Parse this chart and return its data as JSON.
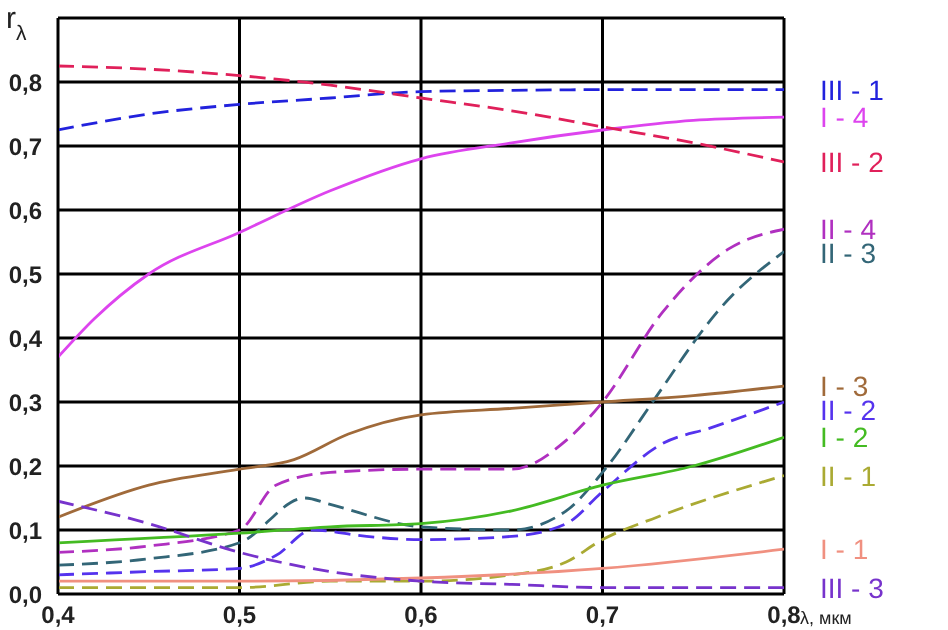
{
  "chart_data": {
    "type": "line",
    "ylabel": "r$_{λ}$",
    "xlabel": "λ, мкм",
    "xlim": [
      0.4,
      0.8
    ],
    "ylim": [
      0,
      0.9
    ],
    "xticks": [
      {
        "value": 0.4,
        "label": "0,4"
      },
      {
        "value": 0.5,
        "label": "0,5"
      },
      {
        "value": 0.6,
        "label": "0,6"
      },
      {
        "value": 0.7,
        "label": "0,7"
      },
      {
        "value": 0.8,
        "label": "0,8"
      }
    ],
    "yticks": [
      {
        "value": 0,
        "label": "0,0"
      },
      {
        "value": 0.1,
        "label": "0,1"
      },
      {
        "value": 0.2,
        "label": "0,2"
      },
      {
        "value": 0.3,
        "label": "0,3"
      },
      {
        "value": 0.4,
        "label": "0,4"
      },
      {
        "value": 0.5,
        "label": "0,5"
      },
      {
        "value": 0.6,
        "label": "0,6"
      },
      {
        "value": 0.7,
        "label": "0,7"
      },
      {
        "value": 0.8,
        "label": "0,8"
      }
    ],
    "grid": true,
    "legend": false,
    "marker": "none",
    "series": [
      {
        "name": "III - 1",
        "color": "#2222dd",
        "line_style": "dashed",
        "x": [
          0.4,
          0.45,
          0.5,
          0.55,
          0.6,
          0.65,
          0.7,
          0.8
        ],
        "values": [
          0.725,
          0.75,
          0.765,
          0.775,
          0.785,
          0.787,
          0.788,
          0.788
        ]
      },
      {
        "name": "I - 4",
        "color": "#dd44ee",
        "line_style": "solid",
        "x": [
          0.4,
          0.42,
          0.45,
          0.5,
          0.55,
          0.6,
          0.65,
          0.7,
          0.75,
          0.8
        ],
        "values": [
          0.37,
          0.43,
          0.5,
          0.565,
          0.63,
          0.68,
          0.705,
          0.725,
          0.74,
          0.745
        ]
      },
      {
        "name": "III - 2",
        "color": "#e0205a",
        "line_style": "dashed",
        "x": [
          0.4,
          0.45,
          0.5,
          0.55,
          0.6,
          0.65,
          0.7,
          0.75,
          0.8
        ],
        "values": [
          0.825,
          0.82,
          0.81,
          0.795,
          0.775,
          0.755,
          0.73,
          0.705,
          0.675
        ]
      },
      {
        "name": "II - 4",
        "color": "#b030c0",
        "line_style": "dashed",
        "x": [
          0.4,
          0.45,
          0.5,
          0.52,
          0.55,
          0.6,
          0.65,
          0.68,
          0.7,
          0.733,
          0.77,
          0.8
        ],
        "values": [
          0.065,
          0.075,
          0.1,
          0.17,
          0.19,
          0.195,
          0.195,
          0.24,
          0.3,
          0.44,
          0.54,
          0.57
        ]
      },
      {
        "name": "II - 3",
        "color": "#336677",
        "line_style": "dashed",
        "x": [
          0.4,
          0.45,
          0.5,
          0.536,
          0.55,
          0.6,
          0.65,
          0.68,
          0.7,
          0.73,
          0.752,
          0.763,
          0.8
        ],
        "values": [
          0.045,
          0.055,
          0.08,
          0.15,
          0.14,
          0.105,
          0.1,
          0.13,
          0.19,
          0.31,
          0.4,
          0.44,
          0.535
        ]
      },
      {
        "name": "I - 3",
        "color": "#a06a3a",
        "line_style": "solid",
        "x": [
          0.4,
          0.45,
          0.5,
          0.53,
          0.56,
          0.6,
          0.65,
          0.7,
          0.75,
          0.8
        ],
        "values": [
          0.12,
          0.17,
          0.195,
          0.21,
          0.25,
          0.28,
          0.29,
          0.3,
          0.31,
          0.325
        ]
      },
      {
        "name": "II - 2",
        "color": "#5533ee",
        "line_style": "dashed",
        "x": [
          0.4,
          0.45,
          0.5,
          0.52,
          0.54,
          0.57,
          0.6,
          0.65,
          0.68,
          0.7,
          0.733,
          0.76,
          0.8
        ],
        "values": [
          0.03,
          0.035,
          0.04,
          0.06,
          0.1,
          0.09,
          0.085,
          0.09,
          0.11,
          0.16,
          0.235,
          0.26,
          0.3
        ]
      },
      {
        "name": "I - 2",
        "color": "#44bb22",
        "line_style": "solid",
        "x": [
          0.4,
          0.5,
          0.55,
          0.6,
          0.65,
          0.7,
          0.75,
          0.8
        ],
        "values": [
          0.08,
          0.095,
          0.105,
          0.11,
          0.13,
          0.17,
          0.2,
          0.245
        ]
      },
      {
        "name": "II - 1",
        "color": "#aaaa33",
        "line_style": "dashed",
        "x": [
          0.4,
          0.5,
          0.55,
          0.6,
          0.65,
          0.68,
          0.7,
          0.73,
          0.8
        ],
        "values": [
          0.01,
          0.01,
          0.02,
          0.02,
          0.03,
          0.05,
          0.085,
          0.12,
          0.185
        ]
      },
      {
        "name": "I - 1",
        "color": "#f09080",
        "line_style": "solid",
        "x": [
          0.4,
          0.5,
          0.6,
          0.7,
          0.8
        ],
        "values": [
          0.02,
          0.02,
          0.025,
          0.04,
          0.07
        ]
      },
      {
        "name": "III - 3",
        "color": "#7733cc",
        "line_style": "dashed",
        "x": [
          0.4,
          0.45,
          0.5,
          0.55,
          0.6,
          0.65,
          0.7,
          0.8
        ],
        "values": [
          0.145,
          0.11,
          0.065,
          0.035,
          0.02,
          0.015,
          0.01,
          0.01
        ]
      }
    ]
  }
}
